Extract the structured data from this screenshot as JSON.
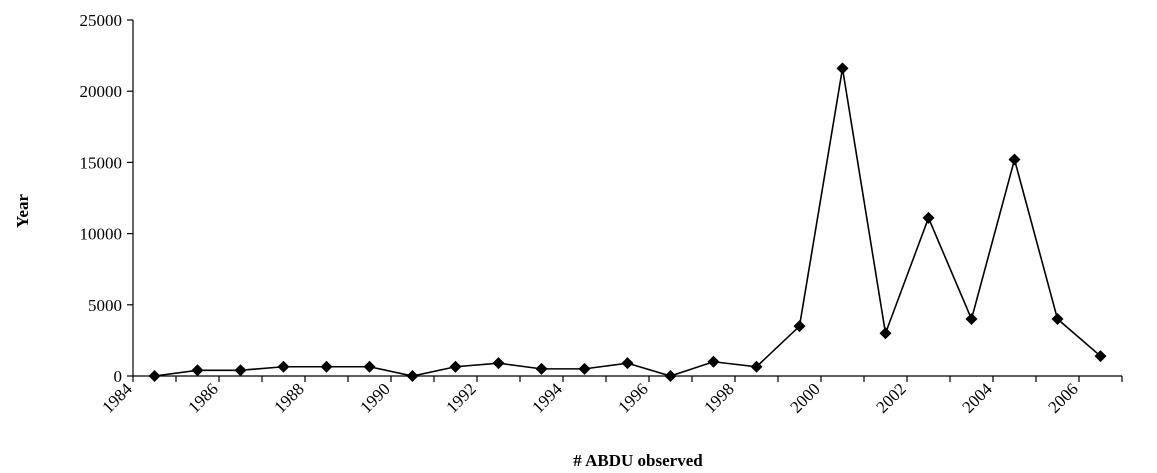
{
  "chart_data": {
    "type": "line",
    "xlabel": "# ABDU observed",
    "ylabel": "Year",
    "ylim": [
      0,
      25000
    ],
    "yticks": [
      0,
      5000,
      10000,
      15000,
      20000,
      25000
    ],
    "xlim": [
      1984,
      2007
    ],
    "xticks": [
      1984,
      1986,
      1988,
      1990,
      1992,
      1994,
      1996,
      1998,
      2000,
      2002,
      2004,
      2006
    ],
    "grid": false,
    "legend": "none",
    "line_color": "#000000",
    "marker": "diamond",
    "series": [
      {
        "x": [
          1984,
          1985,
          1986,
          1987,
          1988,
          1989,
          1990,
          1991,
          1992,
          1993,
          1994,
          1995,
          1996,
          1997,
          1998,
          1999,
          2000,
          2001,
          2002,
          2003,
          2004,
          2005,
          2006
        ],
        "values": [
          0,
          400,
          400,
          650,
          650,
          650,
          0,
          650,
          900,
          500,
          500,
          900,
          0,
          1000,
          650,
          3500,
          21600,
          3000,
          11100,
          4000,
          15200,
          4000,
          1400
        ]
      }
    ]
  }
}
